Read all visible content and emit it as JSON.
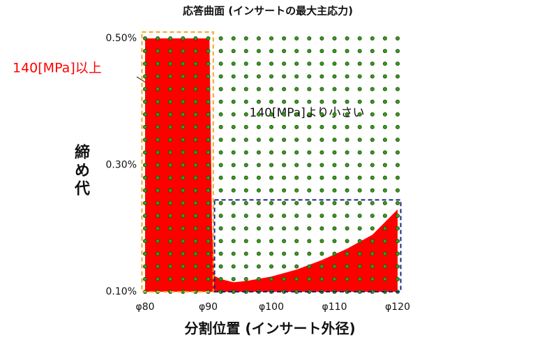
{
  "chart_data": {
    "type": "area",
    "title": "応答曲面 (インサートの最大主応力)",
    "x_label": "分割位置 (インサート外径)",
    "y_label": "締め代",
    "x": [
      80,
      90,
      90.2,
      90.6,
      91,
      92,
      94,
      96,
      100,
      104,
      108,
      112,
      116,
      120
    ],
    "series": [
      {
        "name": "140[MPa]以上",
        "color": "#ff0000",
        "values": [
          0.5,
          0.5,
          0.5,
          0.2,
          0.125,
          0.12,
          0.115,
          0.117,
          0.124,
          0.135,
          0.15,
          0.168,
          0.19,
          0.23
        ]
      }
    ],
    "region_label": "140[MPa]より小さい",
    "sample_x": [
      80,
      82,
      84,
      86,
      88,
      90,
      92,
      94,
      96,
      98,
      100,
      102,
      104,
      106,
      108,
      110,
      112,
      114,
      116,
      118,
      120
    ],
    "sample_y": [
      0.1,
      0.12,
      0.14,
      0.16,
      0.18,
      0.2,
      0.22,
      0.24,
      0.26,
      0.28,
      0.3,
      0.32,
      0.34,
      0.36,
      0.38,
      0.4,
      0.42,
      0.44,
      0.46,
      0.48,
      0.5
    ],
    "sample_color": "#3a9a1e",
    "highlight_boxes": [
      {
        "color": "#f5a623",
        "xlim": [
          79.5,
          90.8
        ],
        "ylim": [
          0.1,
          0.51
        ]
      },
      {
        "color": "#1a237e",
        "xlim": [
          91,
          120.5
        ],
        "ylim": [
          0.1,
          0.245
        ]
      }
    ],
    "xlim": [
      80,
      120
    ],
    "ylim": [
      0.1,
      0.5
    ],
    "xticks": [
      {
        "value": 80,
        "label": "φ80"
      },
      {
        "value": 90,
        "label": "φ90"
      },
      {
        "value": 100,
        "label": "φ100"
      },
      {
        "value": 110,
        "label": "φ110"
      },
      {
        "value": 120,
        "label": "φ120"
      }
    ],
    "yticks": [
      {
        "value": 0.1,
        "label": "0.10%"
      },
      {
        "value": 0.3,
        "label": "0.30%"
      },
      {
        "value": 0.5,
        "label": "0.50%"
      }
    ]
  }
}
